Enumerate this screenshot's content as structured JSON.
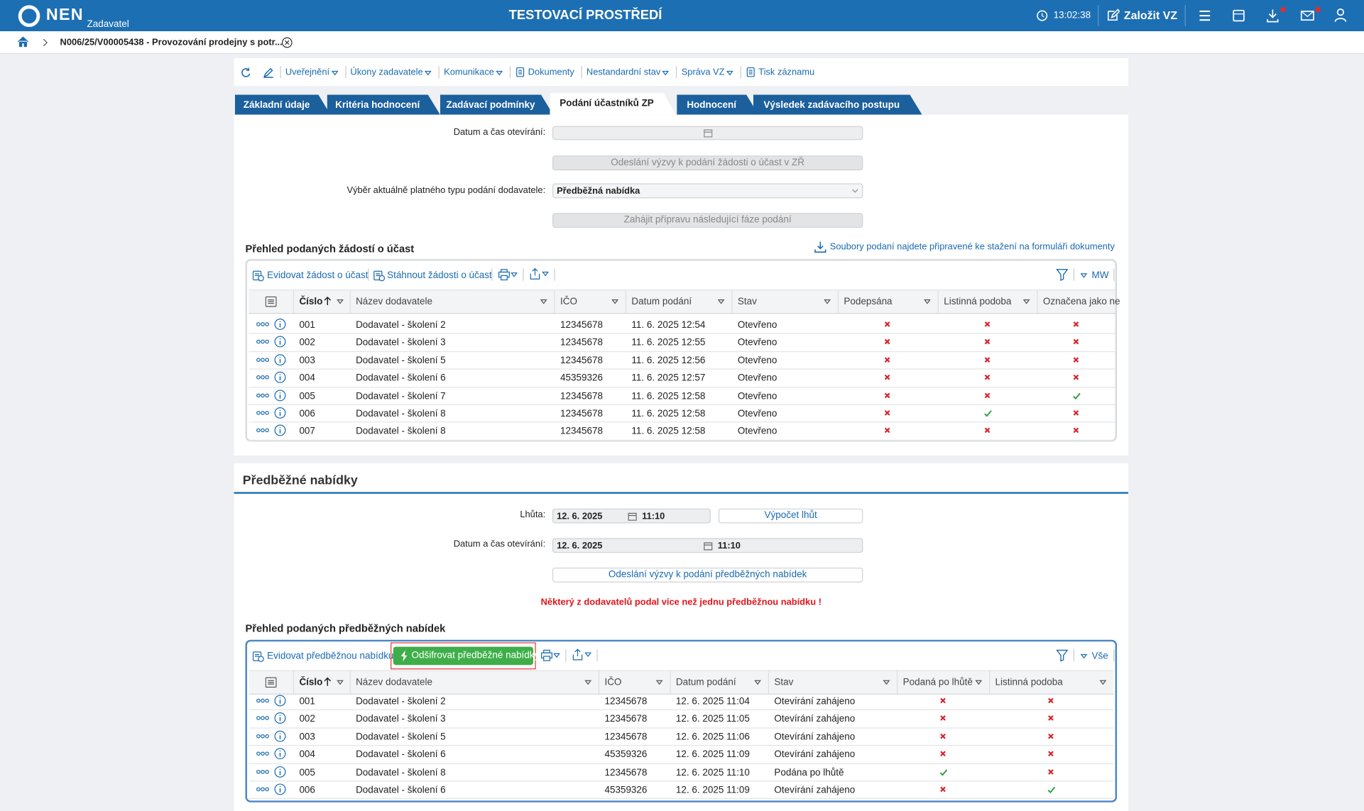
{
  "header": {
    "logo": "NEN",
    "role": "Zadavatel",
    "title": "TESTOVACÍ PROSTŘEDÍ",
    "time": "13:02:38",
    "create": "Založit VZ"
  },
  "breadcrumb": "N006/25/V00005438 - Provozování prodejny s potr...",
  "toolbar": [
    {
      "label": "Uveřejnění",
      "menu": true
    },
    {
      "label": "Úkony zadavatele",
      "menu": true
    },
    {
      "label": "Komunikace",
      "menu": true
    },
    {
      "label": "Dokumenty",
      "menu": false
    },
    {
      "label": "Nestandardní stav",
      "menu": true
    },
    {
      "label": "Správa VZ",
      "menu": true
    },
    {
      "label": "Tisk záznamu",
      "menu": false
    }
  ],
  "tabs": [
    "Základní údaje",
    "Kritéria hodnocení",
    "Zadávací podmínky",
    "Podání účastníků ZP",
    "Hodnocení",
    "Výsledek zadávacího postupu"
  ],
  "active_tab": 3,
  "form1": {
    "open_label": "Datum a čas otevírání:",
    "invite_button": "Odeslání výzvy k podání žádosti o účast v ZŘ",
    "type_label": "Výběr aktuálně platného typu podání dodavatele:",
    "type_value": "Předběžná nabídka",
    "next_button": "Zahájit přípravu následující fáze podání"
  },
  "requests": {
    "title": "Přehled podaných žádostí o účast",
    "files_link": "Soubory podaní najdete připravené ke stažení na formuláři dokumenty",
    "actions": [
      "Evidovat žádost o účast",
      "Stáhnout žádosti o účast"
    ],
    "view": "MW",
    "columns": [
      "Číslo",
      "Název dodavatele",
      "IČO",
      "Datum podání",
      "Stav",
      "Podepsána",
      "Listinná podoba",
      "Označena jako ne"
    ],
    "rows": [
      {
        "cells": [
          "001",
          "Dodavatel - školení 2",
          "12345678",
          "11. 6. 2025 12:54",
          "Otevřeno"
        ],
        "flags": [
          false,
          false,
          false
        ]
      },
      {
        "cells": [
          "002",
          "Dodavatel - školení 3",
          "12345678",
          "11. 6. 2025 12:55",
          "Otevřeno"
        ],
        "flags": [
          false,
          false,
          false
        ]
      },
      {
        "cells": [
          "003",
          "Dodavatel - školení 5",
          "12345678",
          "11. 6. 2025 12:56",
          "Otevřeno"
        ],
        "flags": [
          false,
          false,
          false
        ]
      },
      {
        "cells": [
          "004",
          "Dodavatel - školení 6",
          "45359326",
          "11. 6. 2025 12:57",
          "Otevřeno"
        ],
        "flags": [
          false,
          false,
          false
        ]
      },
      {
        "cells": [
          "005",
          "Dodavatel - školení 7",
          "12345678",
          "11. 6. 2025 12:58",
          "Otevřeno"
        ],
        "flags": [
          false,
          false,
          true
        ]
      },
      {
        "cells": [
          "006",
          "Dodavatel - školení 8",
          "12345678",
          "11. 6. 2025 12:58",
          "Otevřeno"
        ],
        "flags": [
          false,
          true,
          false
        ]
      },
      {
        "cells": [
          "007",
          "Dodavatel - školení 8",
          "12345678",
          "11. 6. 2025 12:58",
          "Otevřeno"
        ],
        "flags": [
          false,
          false,
          false
        ]
      }
    ]
  },
  "preliminary": {
    "title": "Předběžné nabídky",
    "deadline_label": "Lhůta:",
    "deadline_date": "12. 6. 2025",
    "deadline_time": "11:10",
    "calc_button": "Výpočet lhůt",
    "open_label": "Datum a čas otevírání:",
    "open_date": "12. 6. 2025",
    "open_time": "11:10",
    "invite_button": "Odeslání výzvy k podání předběžných nabídek",
    "warning": "Některý z dodavatelů podal více než jednu předběžnou nabídku !"
  },
  "offers": {
    "title": "Přehled podaných předběžných nabídek",
    "actions": [
      "Evidovat předběžnou nabídku"
    ],
    "decrypt_button": "Odšifrovat předběžné nabídky",
    "view": "Vše",
    "columns": [
      "Číslo",
      "Název dodavatele",
      "IČO",
      "Datum podání",
      "Stav",
      "Podaná po lhůtě",
      "Listinná podoba"
    ],
    "rows": [
      {
        "cells": [
          "001",
          "Dodavatel - školení 2",
          "12345678",
          "12. 6. 2025 11:04",
          "Otevírání zahájeno"
        ],
        "flags": [
          false,
          false
        ]
      },
      {
        "cells": [
          "002",
          "Dodavatel - školení 3",
          "12345678",
          "12. 6. 2025 11:05",
          "Otevírání zahájeno"
        ],
        "flags": [
          false,
          false
        ]
      },
      {
        "cells": [
          "003",
          "Dodavatel - školení 5",
          "12345678",
          "12. 6. 2025 11:06",
          "Otevírání zahájeno"
        ],
        "flags": [
          false,
          false
        ]
      },
      {
        "cells": [
          "004",
          "Dodavatel - školení 6",
          "45359326",
          "12. 6. 2025 11:09",
          "Otevírání zahájeno"
        ],
        "flags": [
          false,
          false
        ]
      },
      {
        "cells": [
          "005",
          "Dodavatel - školení 8",
          "12345678",
          "12. 6. 2025 11:10",
          "Podána po lhůtě"
        ],
        "flags": [
          true,
          false
        ]
      },
      {
        "cells": [
          "006",
          "Dodavatel - školení 6",
          "45359326",
          "12. 6. 2025 11:09",
          "Otevírání zahájeno"
        ],
        "flags": [
          false,
          true
        ]
      }
    ]
  }
}
